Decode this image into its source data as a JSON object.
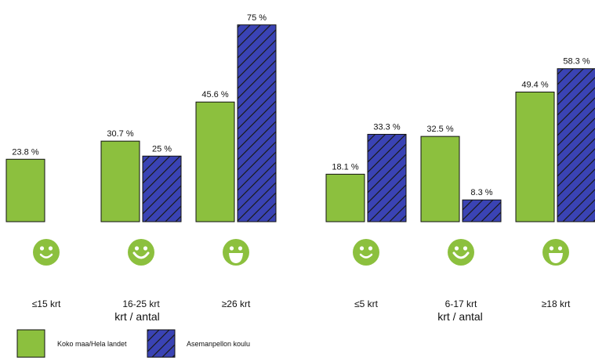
{
  "colors": {
    "national": "#8cc03e",
    "school": "#3a43b4",
    "hatch": "#1a1a1a",
    "smiley": "#8cc03e"
  },
  "chart_data": [
    {
      "type": "bar",
      "categories": [
        "≤15 krt",
        "16-25 krt",
        "≥26 krt"
      ],
      "faces": [
        "smile",
        "grin",
        "laugh"
      ],
      "xlabel": "krt / antal",
      "ylim": [
        0,
        80
      ],
      "series": [
        {
          "name": "Koko maa/Hela landet",
          "values": [
            23.8,
            30.7,
            45.6
          ],
          "labels": [
            "23.8 %",
            "30.7 %",
            "45.6 %"
          ]
        },
        {
          "name": "Asemanpellon koulu",
          "values": [
            null,
            25,
            75
          ],
          "labels": [
            "",
            "25 %",
            "75 %"
          ]
        }
      ]
    },
    {
      "type": "bar",
      "categories": [
        "≤5 krt",
        "6-17 krt",
        "≥18 krt"
      ],
      "faces": [
        "smile",
        "grin",
        "laugh"
      ],
      "xlabel": "krt / antal",
      "ylim": [
        0,
        80
      ],
      "series": [
        {
          "name": "Koko maa/Hela landet",
          "values": [
            18.1,
            32.5,
            49.4
          ],
          "labels": [
            "18.1 %",
            "32.5 %",
            "49.4 %"
          ]
        },
        {
          "name": "Asemanpellon koulu",
          "values": [
            33.3,
            8.3,
            58.3
          ],
          "labels": [
            "33.3 %",
            "8.3 %",
            "58.3 %"
          ]
        }
      ]
    }
  ],
  "legend": {
    "items": [
      {
        "label": "Koko maa/Hela landet",
        "style": "solid-green"
      },
      {
        "label": "Asemanpellon koulu",
        "style": "hatched-blue"
      }
    ]
  }
}
